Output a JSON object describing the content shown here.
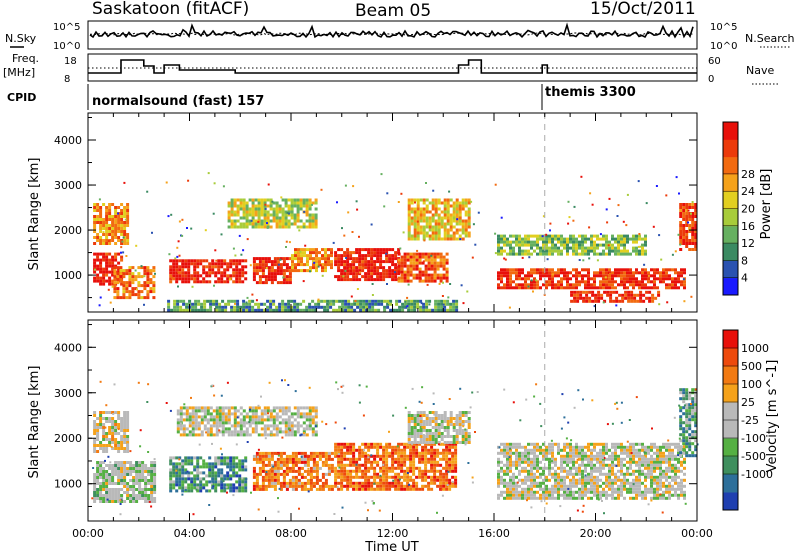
{
  "header": {
    "station": "Saskatoon (fitACF)",
    "beam": "Beam 05",
    "date": "15/Oct/2011"
  },
  "noise_panel": {
    "left_label": "N.Sky",
    "right_label": "N.Search",
    "left_ticks": [
      "10^5",
      "10^0"
    ],
    "right_ticks": [
      "10^5",
      "10^0"
    ]
  },
  "freq_panel": {
    "left_label_1": "Freq.",
    "left_label_2": "[MHz]",
    "right_label": "Nave",
    "left_ticks": [
      "18",
      "8"
    ],
    "right_ticks": [
      "60",
      "0"
    ]
  },
  "cpid": {
    "label": "CPID",
    "modes": [
      {
        "name": "normalsound (fast) 157",
        "start": "00:00"
      },
      {
        "name": "themis 3300",
        "start": "18:00"
      }
    ]
  },
  "chart_data": [
    {
      "type": "heatmap",
      "name": "power",
      "ylabel": "Slant Range [km]",
      "xlabel": "Time UT",
      "x_ticks": [
        "00:00",
        "04:00",
        "08:00",
        "12:00",
        "16:00",
        "20:00",
        "00:00"
      ],
      "y_ticks": [
        1000,
        2000,
        3000,
        4000
      ],
      "ylim": [
        180,
        4600
      ],
      "xlim_hours": [
        0,
        24
      ],
      "colorbar": {
        "label": "Power [dB]",
        "ticks": [
          4,
          8,
          12,
          16,
          20,
          24,
          28
        ],
        "colors": [
          "#1a1aff",
          "#2a52b0",
          "#3a8a62",
          "#66b060",
          "#a8cc3a",
          "#e2cf20",
          "#f5a21b",
          "#f26a10",
          "#ec3a0a",
          "#e8100a"
        ]
      },
      "regions": [
        {
          "t0": 0.2,
          "t1": 1.3,
          "r0": 800,
          "r1": 1500,
          "level": 0.95
        },
        {
          "t0": 0.2,
          "t1": 1.6,
          "r0": 1700,
          "r1": 2600,
          "level": 0.7
        },
        {
          "t0": 1.0,
          "t1": 2.6,
          "r0": 500,
          "r1": 1200,
          "level": 0.75
        },
        {
          "t0": 3.2,
          "t1": 6.2,
          "r0": 850,
          "r1": 1350,
          "level": 0.95
        },
        {
          "t0": 6.5,
          "t1": 8.0,
          "r0": 850,
          "r1": 1400,
          "level": 0.9
        },
        {
          "t0": 8.0,
          "t1": 9.6,
          "r0": 1100,
          "r1": 1600,
          "level": 0.7
        },
        {
          "t0": 9.7,
          "t1": 12.2,
          "r0": 900,
          "r1": 1600,
          "level": 0.95
        },
        {
          "t0": 12.2,
          "t1": 14.2,
          "r0": 900,
          "r1": 1500,
          "level": 0.8
        },
        {
          "t0": 12.6,
          "t1": 15.0,
          "r0": 1800,
          "r1": 2700,
          "level": 0.6
        },
        {
          "t0": 5.5,
          "t1": 9.0,
          "r0": 2100,
          "r1": 2700,
          "level": 0.5
        },
        {
          "t0": 16.0,
          "t1": 23.5,
          "r0": 750,
          "r1": 1150,
          "level": 0.88
        },
        {
          "t0": 16.0,
          "t1": 22.0,
          "r0": 1500,
          "r1": 1900,
          "level": 0.4
        },
        {
          "t0": 19.0,
          "t1": 22.5,
          "r0": 400,
          "r1": 650,
          "level": 0.9
        },
        {
          "t0": 23.3,
          "t1": 24.0,
          "r0": 1600,
          "r1": 2600,
          "level": 0.85
        },
        {
          "t0": 3.0,
          "t1": 14.5,
          "r0": 200,
          "r1": 450,
          "level": 0.3
        }
      ]
    },
    {
      "type": "heatmap",
      "name": "velocity",
      "ylabel": "Slant Range [km]",
      "xlabel": "Time UT",
      "x_ticks": [
        "00:00",
        "04:00",
        "08:00",
        "12:00",
        "16:00",
        "20:00",
        "00:00"
      ],
      "y_ticks": [
        1000,
        2000,
        3000,
        4000
      ],
      "ylim": [
        180,
        4600
      ],
      "xlim_hours": [
        0,
        24
      ],
      "colorbar": {
        "label": "Velocity [m s^-1]",
        "ticks": [
          "1000",
          "500",
          "100",
          "25",
          "-25",
          "-100",
          "-500",
          "-1000"
        ],
        "colors": [
          "#1f3fb0",
          "#2d6f9a",
          "#3f8f5e",
          "#55b043",
          "#b9b9b9",
          "#b9b9b9",
          "#f5a21b",
          "#f27a12",
          "#ee4a0c",
          "#e8100a"
        ]
      },
      "regions": [
        {
          "t0": 0.2,
          "t1": 2.6,
          "r0": 600,
          "r1": 1500,
          "level": 0.45
        },
        {
          "t0": 0.2,
          "t1": 1.6,
          "r0": 1700,
          "r1": 2600,
          "level": 0.55
        },
        {
          "t0": 3.2,
          "t1": 6.2,
          "r0": 850,
          "r1": 1600,
          "level": 0.25
        },
        {
          "t0": 6.5,
          "t1": 9.6,
          "r0": 850,
          "r1": 1700,
          "level": 0.75
        },
        {
          "t0": 9.7,
          "t1": 14.5,
          "r0": 900,
          "r1": 1900,
          "level": 0.78
        },
        {
          "t0": 12.6,
          "t1": 15.0,
          "r0": 1900,
          "r1": 2600,
          "level": 0.5
        },
        {
          "t0": 3.5,
          "t1": 9.0,
          "r0": 2100,
          "r1": 2700,
          "level": 0.5
        },
        {
          "t0": 16.0,
          "t1": 23.5,
          "r0": 700,
          "r1": 1900,
          "level": 0.5
        },
        {
          "t0": 23.3,
          "t1": 24.0,
          "r0": 1600,
          "r1": 3100,
          "level": 0.3
        }
      ]
    }
  ]
}
